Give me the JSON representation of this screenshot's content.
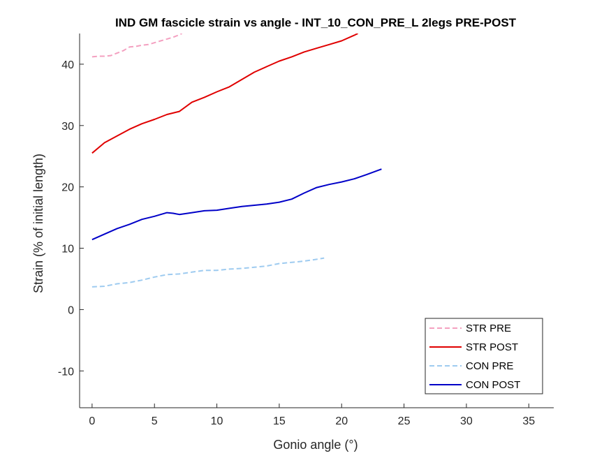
{
  "chart_data": {
    "type": "line",
    "title": "IND GM fascicle strain vs angle - INT_10_CON_PRE_L 2legs PRE-POST",
    "xlabel": "Gonio angle (°)",
    "ylabel": "Strain (% of initial length)",
    "xlim": [
      -1,
      37
    ],
    "ylim": [
      -16,
      45
    ],
    "xticks": [
      0,
      5,
      10,
      15,
      20,
      25,
      30,
      35
    ],
    "yticks": [
      -10,
      0,
      10,
      20,
      30,
      40
    ],
    "grid": false,
    "legend_position": "bottom-right",
    "series": [
      {
        "name": "STR PRE",
        "color": "#f4a0c0",
        "style": "dashed",
        "x": [
          0,
          0.5,
          1,
          1.5,
          2,
          2.5,
          3,
          3.5,
          4,
          4.5,
          5,
          5.5,
          6,
          6.5,
          7,
          7.2
        ],
        "y": [
          41.2,
          41.3,
          41.3,
          41.4,
          41.8,
          42.2,
          42.8,
          42.9,
          43.1,
          43.2,
          43.5,
          43.8,
          44.1,
          44.4,
          44.8,
          45.0
        ]
      },
      {
        "name": "STR POST",
        "color": "#e00000",
        "style": "solid",
        "x": [
          0,
          1,
          2,
          3,
          4,
          5,
          6,
          7,
          8,
          9,
          10,
          11,
          12,
          13,
          14,
          15,
          16,
          17,
          18,
          19,
          20,
          21,
          21.3
        ],
        "y": [
          25.5,
          27.2,
          28.3,
          29.4,
          30.3,
          31.0,
          31.8,
          32.3,
          33.8,
          34.6,
          35.5,
          36.3,
          37.5,
          38.7,
          39.6,
          40.5,
          41.2,
          42.0,
          42.6,
          43.2,
          43.8,
          44.7,
          45.0
        ]
      },
      {
        "name": "CON PRE",
        "color": "#9ecbf0",
        "style": "dashed",
        "x": [
          0,
          1,
          2,
          3,
          4,
          5,
          6,
          7,
          8,
          9,
          10,
          11,
          12,
          13,
          14,
          15,
          16,
          17,
          18,
          18.6
        ],
        "y": [
          3.7,
          3.8,
          4.2,
          4.4,
          4.8,
          5.3,
          5.7,
          5.8,
          6.1,
          6.4,
          6.4,
          6.6,
          6.7,
          6.9,
          7.1,
          7.5,
          7.7,
          7.9,
          8.2,
          8.4
        ]
      },
      {
        "name": "CON POST",
        "color": "#0000c8",
        "style": "solid",
        "x": [
          0,
          1,
          2,
          3,
          4,
          5,
          6,
          6.5,
          7,
          8,
          9,
          10,
          11,
          12,
          13,
          14,
          15,
          16,
          17,
          18,
          19,
          20,
          21,
          22,
          23.2
        ],
        "y": [
          11.4,
          12.3,
          13.2,
          13.9,
          14.7,
          15.2,
          15.8,
          15.7,
          15.5,
          15.8,
          16.1,
          16.2,
          16.5,
          16.8,
          17.0,
          17.2,
          17.5,
          18.0,
          19.0,
          19.9,
          20.4,
          20.8,
          21.3,
          22.0,
          22.9
        ]
      }
    ]
  }
}
